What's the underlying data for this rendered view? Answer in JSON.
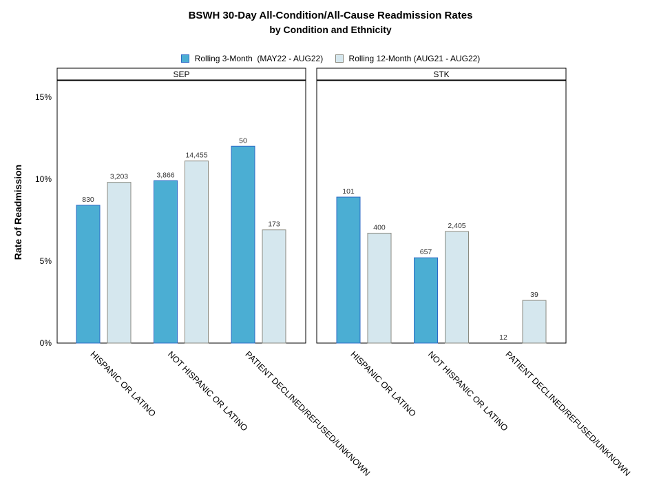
{
  "title": "BSWH 30-Day All-Condition/All-Cause Readmission Rates",
  "subtitle": "by Condition and Ethnicity",
  "ylabel": "Rate of Readmission",
  "colors": {
    "rolling3": "#4BAED3",
    "rolling3_border": "#2E6BC7",
    "rolling12": "#D5E7EE",
    "rolling12_border": "#8A8A80"
  },
  "legend": [
    {
      "label": "Rolling 3-Month  (MAY22 - AUG22)"
    },
    {
      "label": "Rolling 12-Month (AUG21 - AUG22)"
    }
  ],
  "chart_data": {
    "type": "bar",
    "ylim": [
      0,
      16
    ],
    "yticks": [
      0,
      5,
      10,
      15
    ],
    "ytick_labels": [
      "0%",
      "5%",
      "10%",
      "15%"
    ],
    "categories": [
      "HISPANIC OR LATINO",
      "NOT HISPANIC OR LATINO",
      "PATIENT DECLINED/REFUSED/UNKNOWN"
    ],
    "panels": [
      {
        "name": "SEP",
        "series": [
          {
            "name": "Rolling 3-Month  (MAY22 - AUG22)",
            "values": [
              8.4,
              9.9,
              12.0
            ],
            "labels": [
              "830",
              "3,866",
              "50"
            ]
          },
          {
            "name": "Rolling 12-Month (AUG21 - AUG22)",
            "values": [
              9.8,
              11.1,
              6.9
            ],
            "labels": [
              "3,203",
              "14,455",
              "173"
            ]
          }
        ]
      },
      {
        "name": "STK",
        "series": [
          {
            "name": "Rolling 3-Month  (MAY22 - AUG22)",
            "values": [
              8.9,
              5.2,
              0.0
            ],
            "labels": [
              "101",
              "657",
              "12"
            ]
          },
          {
            "name": "Rolling 12-Month (AUG21 - AUG22)",
            "values": [
              6.7,
              6.8,
              2.6
            ],
            "labels": [
              "400",
              "2,405",
              "39"
            ]
          }
        ]
      }
    ]
  }
}
